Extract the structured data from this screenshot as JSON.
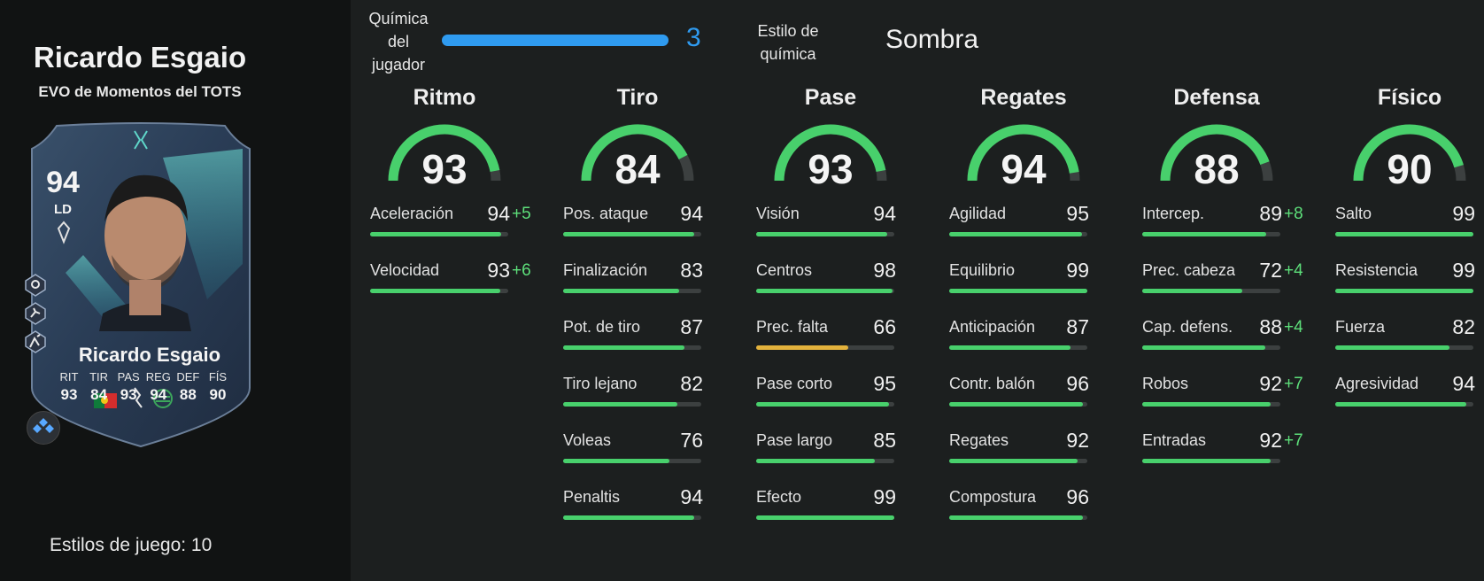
{
  "player": {
    "name": "Ricardo Esgaio",
    "subtitle": "EVO de Momentos del TOTS",
    "playstyles_label": "Estilos de juego: 10"
  },
  "card": {
    "ovr": "94",
    "position": "LD",
    "name": "Ricardo Esgaio",
    "labels": [
      "RIT",
      "TIR",
      "PAS",
      "REG",
      "DEF",
      "FÍS"
    ],
    "values": [
      "93",
      "84",
      "93",
      "94",
      "88",
      "90"
    ]
  },
  "chemistry": {
    "label": "Química del jugador",
    "value": "3",
    "level_fraction": 1.0,
    "style_label": "Estilo de química",
    "style_value": "Sombra",
    "bar_color": "#2f9bf0"
  },
  "colors": {
    "good": "#48d06c",
    "average": "#e3b23c",
    "track": "#3c4040",
    "boost": "#5ddf7a"
  },
  "columns": [
    {
      "title": "Ritmo",
      "value": "93",
      "stats": [
        {
          "label": "Aceleración",
          "value": "94",
          "boost": "+5"
        },
        {
          "label": "Velocidad",
          "value": "93",
          "boost": "+6"
        }
      ]
    },
    {
      "title": "Tiro",
      "value": "84",
      "stats": [
        {
          "label": "Pos. ataque",
          "value": "94",
          "boost": ""
        },
        {
          "label": "Finalización",
          "value": "83",
          "boost": ""
        },
        {
          "label": "Pot. de tiro",
          "value": "87",
          "boost": ""
        },
        {
          "label": "Tiro lejano",
          "value": "82",
          "boost": ""
        },
        {
          "label": "Voleas",
          "value": "76",
          "boost": ""
        },
        {
          "label": "Penaltis",
          "value": "94",
          "boost": ""
        }
      ]
    },
    {
      "title": "Pase",
      "value": "93",
      "stats": [
        {
          "label": "Visión",
          "value": "94",
          "boost": ""
        },
        {
          "label": "Centros",
          "value": "98",
          "boost": ""
        },
        {
          "label": "Prec. falta",
          "value": "66",
          "boost": ""
        },
        {
          "label": "Pase corto",
          "value": "95",
          "boost": ""
        },
        {
          "label": "Pase largo",
          "value": "85",
          "boost": ""
        },
        {
          "label": "Efecto",
          "value": "99",
          "boost": ""
        }
      ]
    },
    {
      "title": "Regates",
      "value": "94",
      "stats": [
        {
          "label": "Agilidad",
          "value": "95",
          "boost": ""
        },
        {
          "label": "Equilibrio",
          "value": "99",
          "boost": ""
        },
        {
          "label": "Anticipación",
          "value": "87",
          "boost": ""
        },
        {
          "label": "Contr. balón",
          "value": "96",
          "boost": ""
        },
        {
          "label": "Regates",
          "value": "92",
          "boost": ""
        },
        {
          "label": "Compostura",
          "value": "96",
          "boost": ""
        }
      ]
    },
    {
      "title": "Defensa",
      "value": "88",
      "stats": [
        {
          "label": "Intercep.",
          "value": "89",
          "boost": "+8"
        },
        {
          "label": "Prec. cabeza",
          "value": "72",
          "boost": "+4"
        },
        {
          "label": "Cap. defens.",
          "value": "88",
          "boost": "+4"
        },
        {
          "label": "Robos",
          "value": "92",
          "boost": "+7"
        },
        {
          "label": "Entradas",
          "value": "92",
          "boost": "+7"
        }
      ]
    },
    {
      "title": "Físico",
      "value": "90",
      "stats": [
        {
          "label": "Salto",
          "value": "99",
          "boost": ""
        },
        {
          "label": "Resistencia",
          "value": "99",
          "boost": ""
        },
        {
          "label": "Fuerza",
          "value": "82",
          "boost": ""
        },
        {
          "label": "Agresividad",
          "value": "94",
          "boost": ""
        }
      ]
    }
  ]
}
